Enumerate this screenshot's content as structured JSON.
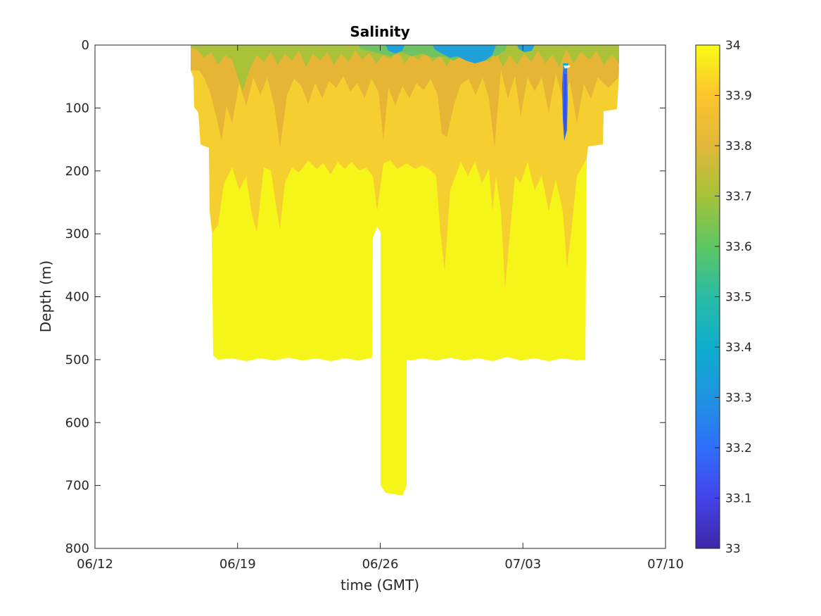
{
  "chart_data": {
    "type": "heatmap",
    "title": "Salinity",
    "xlabel": "time (GMT)",
    "ylabel": "Depth (m)",
    "x_ticks": [
      "06/12",
      "06/19",
      "06/26",
      "07/03",
      "07/10"
    ],
    "x_range": [
      "06/12",
      "07/10"
    ],
    "y_ticks": [
      0,
      100,
      200,
      300,
      400,
      500,
      600,
      700,
      800
    ],
    "ylim": [
      0,
      800
    ],
    "y_reversed": true,
    "colorbar": {
      "ticks": [
        33,
        33.1,
        33.2,
        33.3,
        33.4,
        33.5,
        33.6,
        33.7,
        33.8,
        33.9,
        34
      ],
      "range": [
        33,
        34
      ],
      "colormap": "parula",
      "stops": [
        "#3e26a8",
        "#4443e9",
        "#2f6ffb",
        "#1f93e1",
        "#0fadcd",
        "#29bca4",
        "#5ec663",
        "#a5c239",
        "#e2b83a",
        "#fdc42e",
        "#f9fb15"
      ]
    },
    "data_extent": {
      "start": "06/16 16:00",
      "end": "07/07 18:00",
      "max_depth_m": 505,
      "deep_profiles_depth_m": 705,
      "deep_profiles_start": "06/26",
      "deep_profiles_end": "06/27 06:00"
    },
    "layers": [
      {
        "depth_range_m": [
          0,
          40
        ],
        "salinity": 33.65,
        "description": "surface layer, freshest"
      },
      {
        "depth_range_m": [
          40,
          100
        ],
        "salinity": 33.8
      },
      {
        "depth_range_m": [
          100,
          200
        ],
        "salinity": 33.9
      },
      {
        "depth_range_m": [
          200,
          505
        ],
        "salinity": 34.0
      }
    ],
    "fresh_patches": [
      {
        "date": "06/26",
        "depth_m": 5,
        "salinity": 33.45
      },
      {
        "date": "06/30",
        "depth_m": 10,
        "salinity": 33.4
      },
      {
        "date": "07/05",
        "depth_range_m": [
          30,
          180
        ],
        "salinity": 33.3
      }
    ]
  }
}
